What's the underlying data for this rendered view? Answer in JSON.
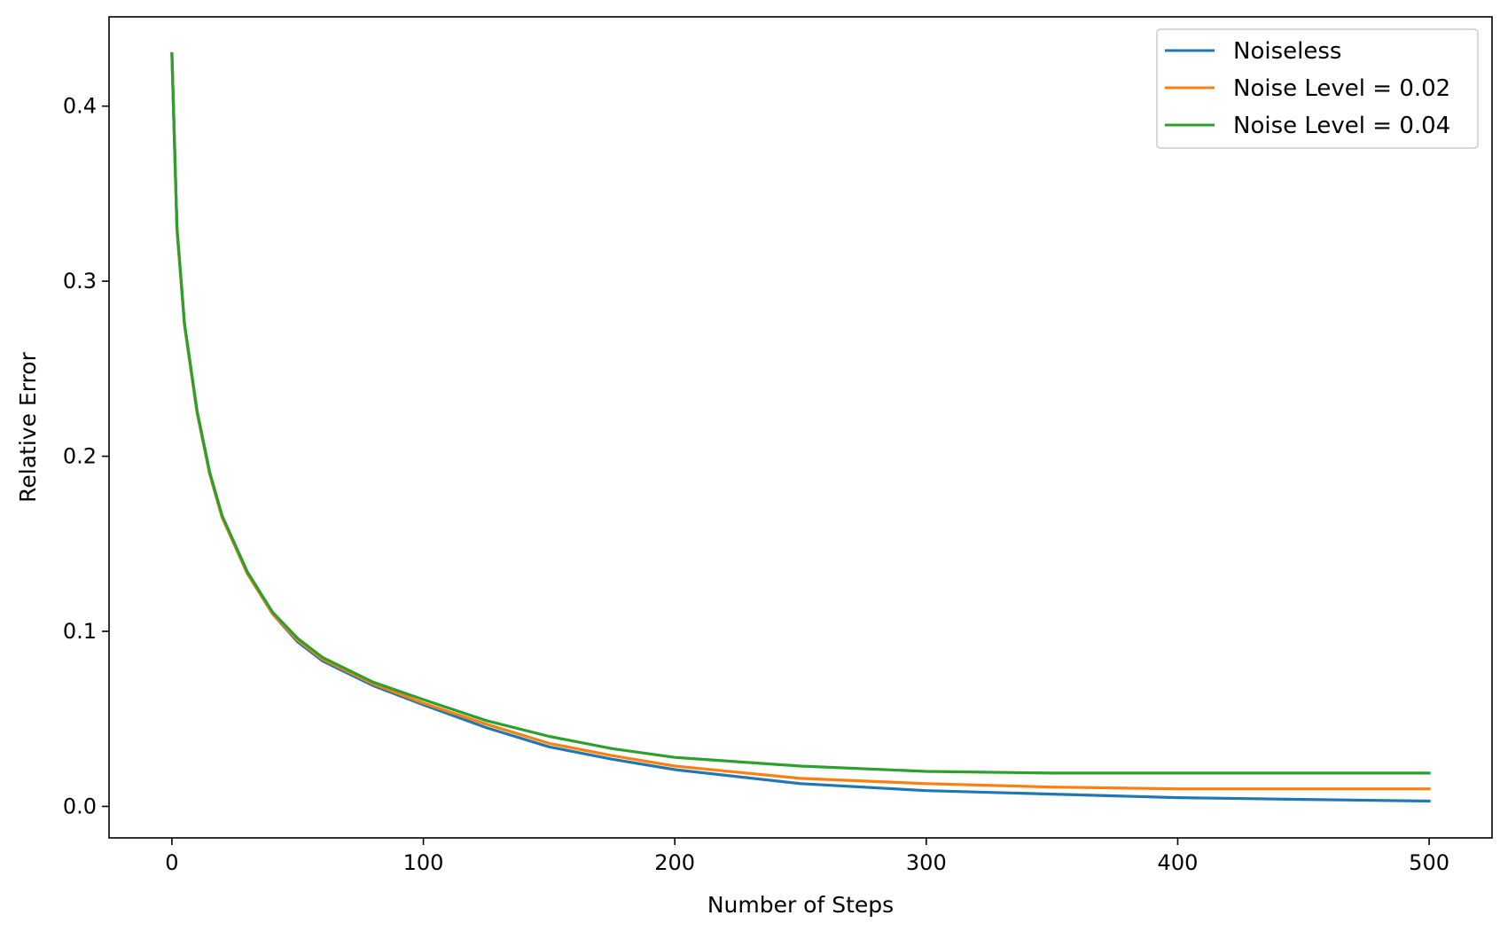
{
  "chart_data": {
    "type": "line",
    "title": "",
    "xlabel": "Number of Steps",
    "ylabel": "Relative Error",
    "xlim": [
      -25,
      525
    ],
    "ylim": [
      -0.018,
      0.451
    ],
    "xticks": [
      0,
      100,
      200,
      300,
      400,
      500
    ],
    "xtick_labels": [
      "0",
      "100",
      "200",
      "300",
      "400",
      "500"
    ],
    "yticks": [
      0.0,
      0.1,
      0.2,
      0.3,
      0.4
    ],
    "ytick_labels": [
      "0.0",
      "0.1",
      "0.2",
      "0.3",
      "0.4"
    ],
    "grid": false,
    "legend_position": "top-right",
    "x": [
      0,
      2,
      5,
      10,
      15,
      20,
      30,
      40,
      50,
      60,
      80,
      100,
      125,
      150,
      175,
      200,
      250,
      300,
      350,
      400,
      450,
      500
    ],
    "series": [
      {
        "name": "Noiseless",
        "color": "#1f77b4",
        "values": [
          0.43,
          0.33,
          0.275,
          0.225,
          0.19,
          0.165,
          0.133,
          0.11,
          0.094,
          0.083,
          0.069,
          0.058,
          0.045,
          0.034,
          0.027,
          0.021,
          0.013,
          0.009,
          0.007,
          0.005,
          0.004,
          0.003
        ]
      },
      {
        "name": "Noise Level = 0.02",
        "color": "#ff7f0e",
        "values": [
          0.43,
          0.33,
          0.275,
          0.225,
          0.19,
          0.165,
          0.133,
          0.11,
          0.095,
          0.084,
          0.07,
          0.059,
          0.047,
          0.036,
          0.029,
          0.023,
          0.016,
          0.013,
          0.011,
          0.01,
          0.01,
          0.01
        ]
      },
      {
        "name": "Noise Level = 0.04",
        "color": "#2ca02c",
        "values": [
          0.43,
          0.331,
          0.276,
          0.226,
          0.191,
          0.166,
          0.134,
          0.111,
          0.096,
          0.085,
          0.071,
          0.061,
          0.049,
          0.04,
          0.033,
          0.028,
          0.023,
          0.02,
          0.019,
          0.019,
          0.019,
          0.019
        ]
      }
    ]
  }
}
